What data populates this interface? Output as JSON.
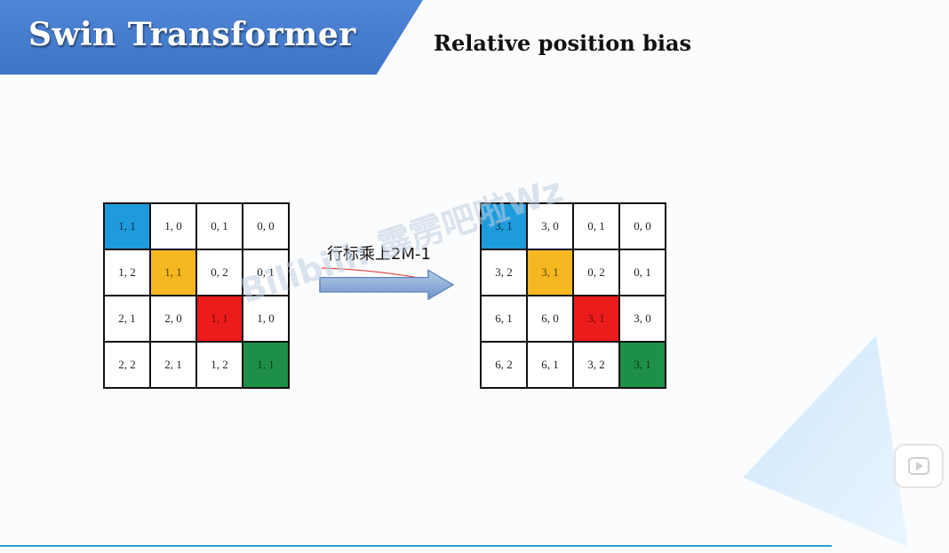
{
  "slide": {
    "title": "Swin Transformer",
    "heading": "Relative position bias"
  },
  "left_matrix": [
    [
      "1, 1",
      "1, 0",
      "0, 1",
      "0, 0"
    ],
    [
      "1, 2",
      "1, 1",
      "0, 2",
      "0, 1"
    ],
    [
      "2, 1",
      "2, 0",
      "1, 1",
      "1, 0"
    ],
    [
      "2, 2",
      "2, 1",
      "1, 2",
      "1, 1"
    ]
  ],
  "right_matrix": [
    [
      "3, 1",
      "3, 0",
      "0, 1",
      "0, 0"
    ],
    [
      "3, 2",
      "3, 1",
      "0, 2",
      "0, 1"
    ],
    [
      "6, 1",
      "6, 0",
      "3, 1",
      "3, 0"
    ],
    [
      "6, 2",
      "6, 1",
      "3, 2",
      "3, 1"
    ]
  ],
  "highlight_colors": {
    "blue": "#1e9bdc",
    "yellow": "#f5b821",
    "red": "#ec1c1c",
    "green": "#1e8f48"
  },
  "arrow": {
    "label": "行标乘上2M-1"
  },
  "watermark": "Bilibili: 霹雳吧啦Wz",
  "theme": {
    "banner_color": "#4f86d6",
    "accent_line": "#2a9fd6",
    "triangle_color": "#dcefff"
  },
  "icons": {
    "play": "play-icon"
  }
}
